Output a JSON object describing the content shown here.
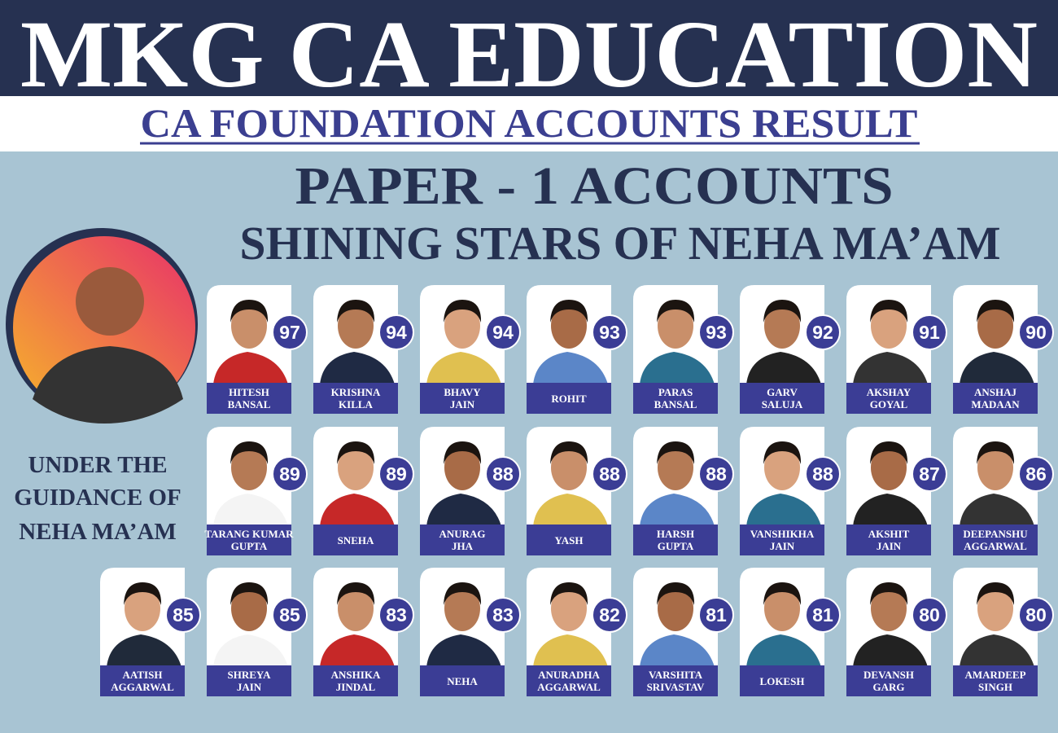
{
  "header": {
    "title": "MKG CA EDUCATION",
    "subtitle": "CA FOUNDATION ACCOUNTS RESULT"
  },
  "heading": {
    "paper": "PAPER - 1  ACCOUNTS",
    "stars": "SHINING STARS OF NEHA MA’AM"
  },
  "guidance": [
    "UNDER THE",
    "GUIDANCE OF",
    "NEHA MA’AM"
  ],
  "rows": [
    [
      {
        "name": [
          "HITESH",
          "BANSAL"
        ],
        "score": 97
      },
      {
        "name": [
          "KRISHNA",
          "KILLA"
        ],
        "score": 94
      },
      {
        "name": [
          "BHAVY",
          "JAIN"
        ],
        "score": 94
      },
      {
        "name": [
          "ROHIT"
        ],
        "score": 93
      },
      {
        "name": [
          "PARAS",
          "BANSAL"
        ],
        "score": 93
      },
      {
        "name": [
          "GARV",
          "SALUJA"
        ],
        "score": 92
      },
      {
        "name": [
          "AKSHAY",
          "GOYAL"
        ],
        "score": 91
      },
      {
        "name": [
          "ANSHAJ",
          "MADAAN"
        ],
        "score": 90
      }
    ],
    [
      {
        "name": [
          "TARANG KUMAR",
          "GUPTA"
        ],
        "score": 89
      },
      {
        "name": [
          "SNEHA"
        ],
        "score": 89
      },
      {
        "name": [
          "ANURAG",
          "JHA"
        ],
        "score": 88
      },
      {
        "name": [
          "YASH"
        ],
        "score": 88
      },
      {
        "name": [
          "HARSH",
          "GUPTA"
        ],
        "score": 88
      },
      {
        "name": [
          "VANSHIKHA",
          "JAIN"
        ],
        "score": 88
      },
      {
        "name": [
          "AKSHIT",
          "JAIN"
        ],
        "score": 87
      },
      {
        "name": [
          "DEEPANSHU",
          "AGGARWAL"
        ],
        "score": 86
      }
    ],
    [
      {
        "name": [
          "AATISH",
          "AGGARWAL"
        ],
        "score": 85
      },
      {
        "name": [
          "SHREYA",
          "JAIN"
        ],
        "score": 85
      },
      {
        "name": [
          "ANSHIKA",
          "JINDAL"
        ],
        "score": 83
      },
      {
        "name": [
          "NEHA"
        ],
        "score": 83
      },
      {
        "name": [
          "ANURADHA",
          "AGGARWAL"
        ],
        "score": 82
      },
      {
        "name": [
          "VARSHITA",
          "SRIVASTAV"
        ],
        "score": 81
      },
      {
        "name": [
          "LOKESH"
        ],
        "score": 81
      },
      {
        "name": [
          "DEVANSH",
          "GARG"
        ],
        "score": 80
      },
      {
        "name": [
          "AMARDEEP",
          "SINGH"
        ],
        "score": 80
      }
    ]
  ]
}
